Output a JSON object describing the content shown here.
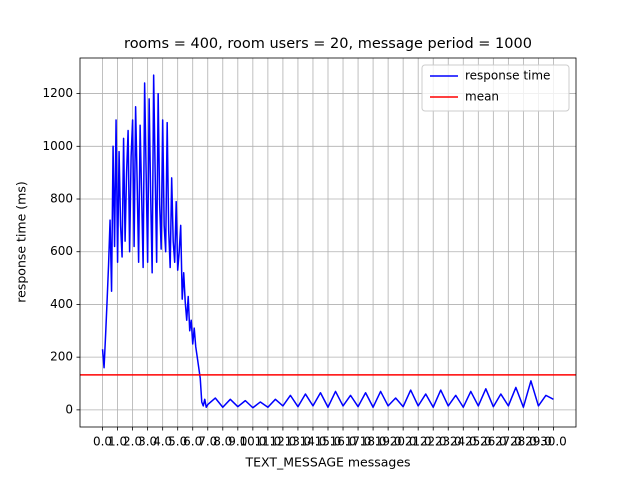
{
  "chart_data": {
    "type": "line",
    "title": "rooms = 400, room users = 20, message period = 1000",
    "x_label": "TEXT_MESSAGE messages",
    "y_label": "response time (ms)",
    "xlim": [
      -1.5,
      31.5
    ],
    "ylim": [
      -65,
      1335
    ],
    "xticks": [
      {
        "value": 0,
        "label": "0.0"
      },
      {
        "value": 1,
        "label": "1.0"
      },
      {
        "value": 2,
        "label": "2.0"
      },
      {
        "value": 3,
        "label": "3.0"
      },
      {
        "value": 4,
        "label": "4.0"
      },
      {
        "value": 5,
        "label": "5.0"
      },
      {
        "value": 6,
        "label": "6.0"
      },
      {
        "value": 7,
        "label": "7.0"
      },
      {
        "value": 8,
        "label": "8.0"
      },
      {
        "value": 9,
        "label": "9.0"
      },
      {
        "value": 10,
        "label": "10.0"
      },
      {
        "value": 11,
        "label": "11.0"
      },
      {
        "value": 12,
        "label": "12.0"
      },
      {
        "value": 13,
        "label": "13.0"
      },
      {
        "value": 14,
        "label": "14.0"
      },
      {
        "value": 15,
        "label": "15.0"
      },
      {
        "value": 16,
        "label": "16.0"
      },
      {
        "value": 17,
        "label": "17.0"
      },
      {
        "value": 18,
        "label": "18.0"
      },
      {
        "value": 19,
        "label": "19.0"
      },
      {
        "value": 20,
        "label": "20.0"
      },
      {
        "value": 21,
        "label": "21.0"
      },
      {
        "value": 22,
        "label": "22.0"
      },
      {
        "value": 23,
        "label": "23.0"
      },
      {
        "value": 24,
        "label": "24.0"
      },
      {
        "value": 25,
        "label": "25.0"
      },
      {
        "value": 26,
        "label": "26.0"
      },
      {
        "value": 27,
        "label": "27.0"
      },
      {
        "value": 28,
        "label": "28.0"
      },
      {
        "value": 29,
        "label": "29.0"
      },
      {
        "value": 30,
        "label": "30.0"
      }
    ],
    "yticks": [
      0,
      200,
      400,
      600,
      800,
      1000,
      1200
    ],
    "grid": true,
    "legend": "upper right",
    "series": [
      {
        "name": "response time",
        "color": "#0000ff",
        "x": [
          0,
          0.1,
          0.2,
          0.3,
          0.4,
          0.5,
          0.6,
          0.7,
          0.8,
          0.9,
          1,
          1.1,
          1.2,
          1.3,
          1.4,
          1.5,
          1.6,
          1.7,
          1.8,
          1.9,
          2,
          2.1,
          2.2,
          2.3,
          2.4,
          2.5,
          2.6,
          2.7,
          2.8,
          2.9,
          3,
          3.1,
          3.2,
          3.3,
          3.4,
          3.5,
          3.6,
          3.7,
          3.8,
          3.9,
          4,
          4.1,
          4.2,
          4.3,
          4.4,
          4.5,
          4.6,
          4.7,
          4.8,
          4.9,
          5,
          5.1,
          5.2,
          5.3,
          5.4,
          5.5,
          5.6,
          5.7,
          5.8,
          5.9,
          6,
          6.1,
          6.2,
          6.3,
          6.4,
          6.5,
          6.6,
          6.7,
          6.8,
          6.9,
          7,
          7.5,
          8,
          8.5,
          9,
          9.5,
          10,
          10.5,
          11,
          11.5,
          12,
          12.5,
          13,
          13.5,
          14,
          14.5,
          15,
          15.5,
          16,
          16.5,
          17,
          17.5,
          18,
          18.5,
          19,
          19.5,
          20,
          20.5,
          21,
          21.5,
          22,
          22.5,
          23,
          23.5,
          24,
          24.5,
          25,
          25.5,
          26,
          26.5,
          27,
          27.5,
          28,
          28.5,
          29,
          29.5,
          30
        ],
        "values": [
          230,
          160,
          280,
          410,
          550,
          720,
          450,
          1000,
          620,
          1100,
          560,
          980,
          700,
          580,
          1030,
          640,
          900,
          1060,
          600,
          960,
          1100,
          620,
          1150,
          870,
          560,
          1080,
          820,
          540,
          1240,
          900,
          560,
          1180,
          820,
          520,
          1270,
          900,
          560,
          1200,
          780,
          610,
          1100,
          700,
          600,
          1090,
          680,
          540,
          880,
          640,
          560,
          790,
          530,
          600,
          700,
          420,
          520,
          410,
          340,
          430,
          300,
          340,
          250,
          310,
          240,
          200,
          160,
          120,
          30,
          15,
          40,
          10,
          20,
          45,
          10,
          40,
          12,
          35,
          8,
          30,
          10,
          40,
          15,
          55,
          12,
          60,
          15,
          65,
          10,
          70,
          15,
          55,
          12,
          65,
          10,
          70,
          15,
          45,
          12,
          75,
          15,
          60,
          10,
          75,
          15,
          55,
          10,
          70,
          15,
          80,
          12,
          60,
          15,
          85,
          10,
          110,
          15,
          55,
          40
        ]
      },
      {
        "name": "mean",
        "color": "#ff0000",
        "kind": "hline",
        "values": [
          133
        ]
      }
    ]
  }
}
